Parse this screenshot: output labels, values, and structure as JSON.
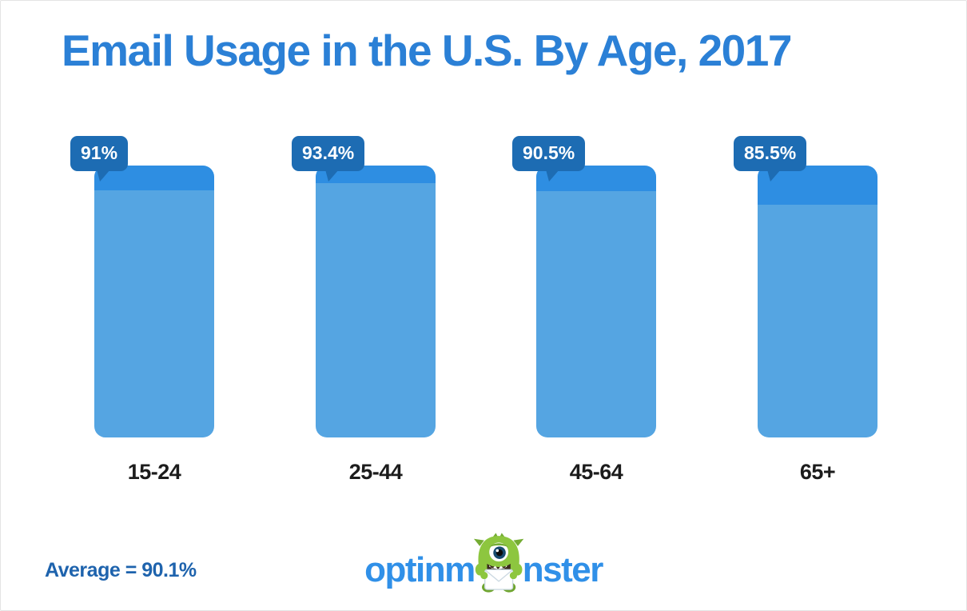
{
  "title": "Email Usage in the U.S. By Age, 2017",
  "chart_data": {
    "type": "bar",
    "title": "Email Usage in the U.S. By Age, 2017",
    "categories": [
      "15-24",
      "25-44",
      "45-64",
      "65+"
    ],
    "values": [
      91,
      93.4,
      90.5,
      85.5
    ],
    "value_labels": [
      "91%",
      "93.4%",
      "90.5%",
      "85.5%"
    ],
    "xlabel": "",
    "ylabel": "",
    "ylim": [
      0,
      100
    ],
    "grid": false,
    "legend": "none",
    "annotations": [
      "Average = 90.1%"
    ],
    "style_note": "Every bar spans the full 0-100% height; a darker cap segment marks the gap between the value and 100%, and a dark speech bubble over the top-left corner shows the value"
  },
  "footer": {
    "average_label": "Average = 90.1%",
    "average_value": 90.1
  },
  "logo": {
    "text_left": "optinm",
    "text_right": "nster",
    "full_name": "optinmonster",
    "mascot": "one-eyed green monster holding an envelope"
  },
  "colors": {
    "title_blue": "#2b80d6",
    "bar_body": "#55a5e2",
    "bar_cap": "#2e8ee2",
    "bubble_blue": "#1d6cb3",
    "bubble_text": "#ffffff",
    "average_blue": "#1e63ad",
    "logo_blue": "#3090e8",
    "label_black": "#1c1c1c",
    "monster_green": "#8dc63f",
    "monster_green_dark": "#74ac33",
    "background": "#ffffff"
  }
}
